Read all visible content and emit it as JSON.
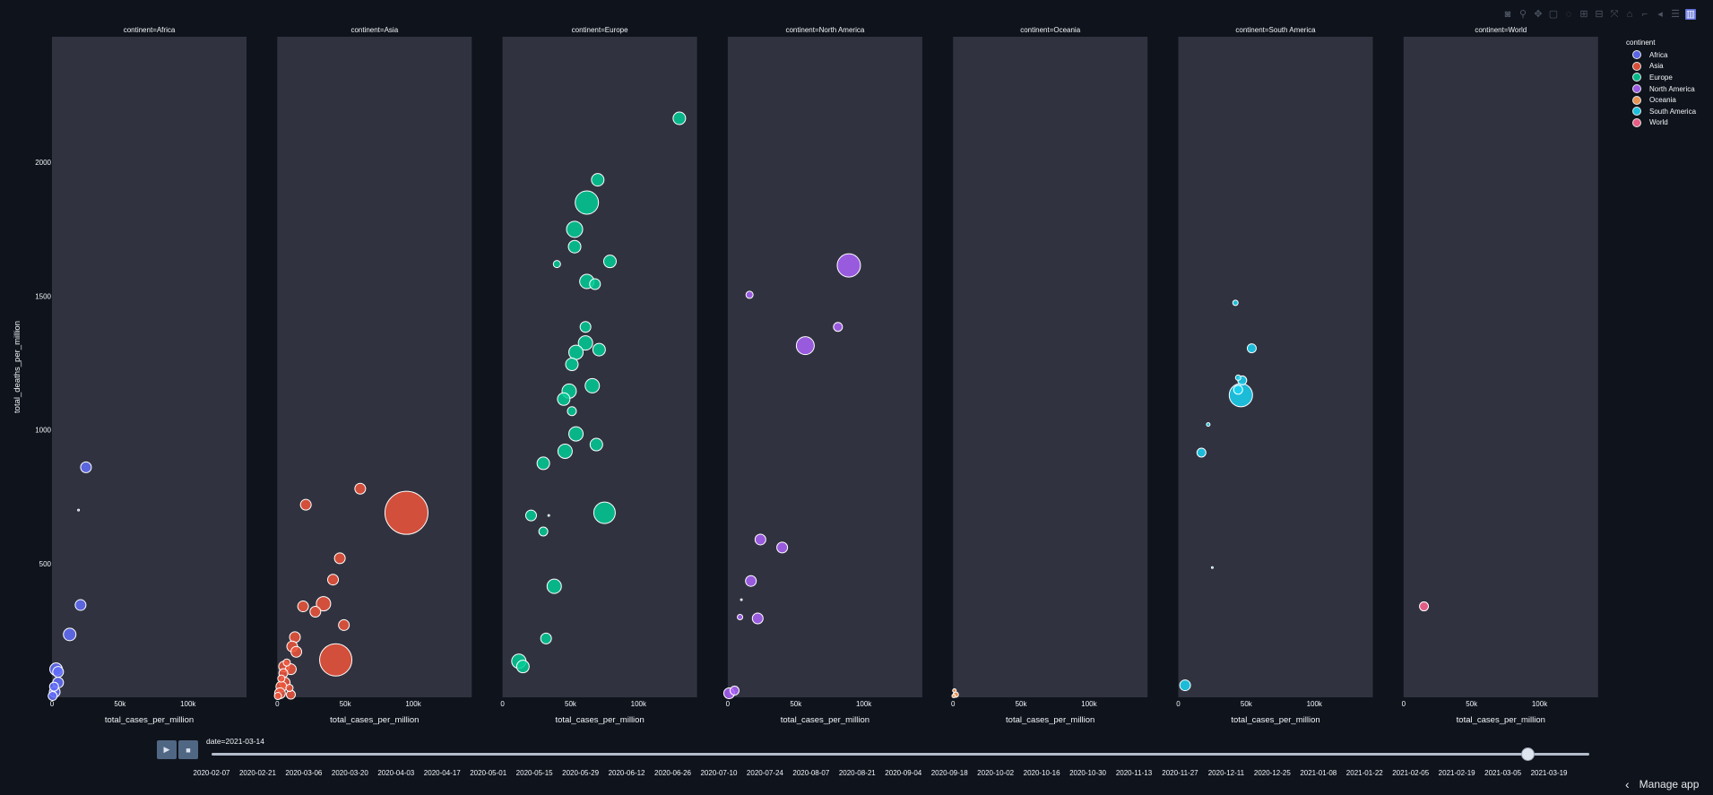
{
  "modebar": {
    "icons": [
      "camera-icon",
      "zoom-icon",
      "pan-icon",
      "box-select-icon",
      "lasso-icon",
      "zoom-in-icon",
      "zoom-out-icon",
      "autoscale-icon",
      "reset-axes-icon",
      "spike-lines-icon",
      "hover-closest-icon",
      "hover-compare-icon",
      "plotly-logo-icon"
    ]
  },
  "legend": {
    "title": "continent",
    "items": [
      {
        "label": "Africa",
        "color": "#636efa"
      },
      {
        "label": "Asia",
        "color": "#ef553b"
      },
      {
        "label": "Europe",
        "color": "#00cc96"
      },
      {
        "label": "North America",
        "color": "#ab63fa"
      },
      {
        "label": "Oceania",
        "color": "#ffa15a"
      },
      {
        "label": "South America",
        "color": "#19d3f3"
      },
      {
        "label": "World",
        "color": "#ff6692"
      }
    ]
  },
  "animation": {
    "current_label": "date=2021-03-14",
    "play_icon": "play-icon",
    "stop_icon": "stop-icon",
    "slider_value": 0.955,
    "ticks": [
      "2020-02-07",
      "2020-02-21",
      "2020-03-06",
      "2020-03-20",
      "2020-04-03",
      "2020-04-17",
      "2020-05-01",
      "2020-05-15",
      "2020-05-29",
      "2020-06-12",
      "2020-06-26",
      "2020-07-10",
      "2020-07-24",
      "2020-08-07",
      "2020-08-21",
      "2020-09-04",
      "2020-09-18",
      "2020-10-02",
      "2020-10-16",
      "2020-10-30",
      "2020-11-13",
      "2020-11-27",
      "2020-12-11",
      "2020-12-25",
      "2021-01-08",
      "2021-01-22",
      "2021-02-05",
      "2021-02-19",
      "2021-03-05",
      "2021-03-19"
    ]
  },
  "manage_app": {
    "label": "Manage app",
    "icon": "chevron-left-icon"
  },
  "chart_data": {
    "type": "scatter",
    "bubble": true,
    "xlabel": "total_cases_per_million",
    "ylabel": "total_deaths_per_million",
    "xlim": [
      0,
      143000
    ],
    "ylim": [
      0,
      2470
    ],
    "x_ticks": [
      0,
      50000,
      100000
    ],
    "x_tick_labels": [
      "0",
      "50k",
      "100k"
    ],
    "y_ticks": [
      500,
      1000,
      1500,
      2000
    ],
    "y_tick_labels": [
      "500",
      "1000",
      "1500",
      "2000"
    ],
    "legend_title": "continent",
    "legend_position": "top-right",
    "grid": false,
    "facets": [
      {
        "title": "continent=Africa",
        "name": "Africa",
        "color": "#636efa",
        "points": [
          [
            25000,
            860,
            6
          ],
          [
            19500,
            700,
            1
          ],
          [
            21000,
            345,
            6
          ],
          [
            13000,
            235,
            7
          ],
          [
            3000,
            105,
            7
          ],
          [
            4500,
            95,
            6
          ],
          [
            4500,
            55,
            6
          ],
          [
            1500,
            40,
            5
          ],
          [
            2000,
            20,
            6
          ],
          [
            500,
            5,
            5
          ]
        ]
      },
      {
        "title": "continent=Asia",
        "name": "Asia",
        "color": "#ef553b",
        "points": [
          [
            95000,
            690,
            24
          ],
          [
            61000,
            780,
            6
          ],
          [
            21000,
            720,
            6
          ],
          [
            46000,
            520,
            6
          ],
          [
            41000,
            440,
            6
          ],
          [
            19000,
            340,
            6
          ],
          [
            34000,
            350,
            8
          ],
          [
            28000,
            320,
            6
          ],
          [
            49000,
            270,
            6
          ],
          [
            13000,
            225,
            6
          ],
          [
            11000,
            190,
            6
          ],
          [
            14000,
            170,
            6
          ],
          [
            43000,
            140,
            18
          ],
          [
            7000,
            130,
            4
          ],
          [
            5000,
            115,
            6
          ],
          [
            10000,
            105,
            6
          ],
          [
            4500,
            90,
            5
          ],
          [
            3000,
            70,
            4
          ],
          [
            5500,
            55,
            6
          ],
          [
            3000,
            40,
            6
          ],
          [
            9000,
            35,
            4
          ],
          [
            2000,
            15,
            6
          ],
          [
            10000,
            10,
            5
          ],
          [
            500,
            5,
            4
          ]
        ]
      },
      {
        "title": "continent=Europe",
        "name": "Europe",
        "color": "#00cc96",
        "points": [
          [
            130000,
            2165,
            7
          ],
          [
            70000,
            1935,
            7
          ],
          [
            62000,
            1850,
            13
          ],
          [
            53000,
            1750,
            9
          ],
          [
            53000,
            1685,
            7
          ],
          [
            79000,
            1630,
            7
          ],
          [
            40000,
            1620,
            4
          ],
          [
            62000,
            1555,
            8
          ],
          [
            68000,
            1545,
            6
          ],
          [
            61000,
            1385,
            6
          ],
          [
            61000,
            1325,
            8
          ],
          [
            71000,
            1300,
            7
          ],
          [
            54000,
            1290,
            8
          ],
          [
            51000,
            1245,
            7
          ],
          [
            49000,
            1145,
            8
          ],
          [
            66000,
            1165,
            8
          ],
          [
            45000,
            1115,
            7
          ],
          [
            51000,
            1070,
            5
          ],
          [
            54000,
            985,
            8
          ],
          [
            69000,
            945,
            7
          ],
          [
            46000,
            920,
            8
          ],
          [
            30000,
            875,
            7
          ],
          [
            75000,
            690,
            12
          ],
          [
            21000,
            680,
            6
          ],
          [
            34000,
            680,
            1
          ],
          [
            30000,
            620,
            5
          ],
          [
            38000,
            415,
            8
          ],
          [
            32000,
            220,
            6
          ],
          [
            12000,
            135,
            8
          ],
          [
            15000,
            115,
            7
          ]
        ]
      },
      {
        "title": "continent=North America",
        "name": "North America",
        "color": "#ab63fa",
        "points": [
          [
            89000,
            1615,
            13
          ],
          [
            16000,
            1505,
            4
          ],
          [
            81000,
            1385,
            5
          ],
          [
            57000,
            1315,
            10
          ],
          [
            24000,
            590,
            6
          ],
          [
            40000,
            560,
            6
          ],
          [
            17000,
            435,
            6
          ],
          [
            10000,
            365,
            1
          ],
          [
            9000,
            300,
            3
          ],
          [
            22000,
            295,
            6
          ],
          [
            5000,
            25,
            5
          ],
          [
            1000,
            15,
            6
          ]
        ]
      },
      {
        "title": "continent=Oceania",
        "name": "Oceania",
        "color": "#ffa15a",
        "points": [
          [
            1000,
            25,
            2
          ],
          [
            2000,
            10,
            3
          ],
          [
            500,
            5,
            2
          ]
        ]
      },
      {
        "title": "continent=South America",
        "name": "South America",
        "color": "#19d3f3",
        "points": [
          [
            42000,
            1475,
            3
          ],
          [
            54000,
            1305,
            5
          ],
          [
            44000,
            1195,
            3
          ],
          [
            47000,
            1185,
            5
          ],
          [
            46000,
            1130,
            13
          ],
          [
            44000,
            1150,
            5
          ],
          [
            22000,
            1020,
            2
          ],
          [
            17000,
            915,
            5
          ],
          [
            25000,
            485,
            1
          ],
          [
            5000,
            45,
            6
          ]
        ]
      },
      {
        "title": "continent=World",
        "name": "World",
        "color": "#ff6692",
        "points": [
          [
            15000,
            340,
            5
          ]
        ]
      }
    ]
  }
}
